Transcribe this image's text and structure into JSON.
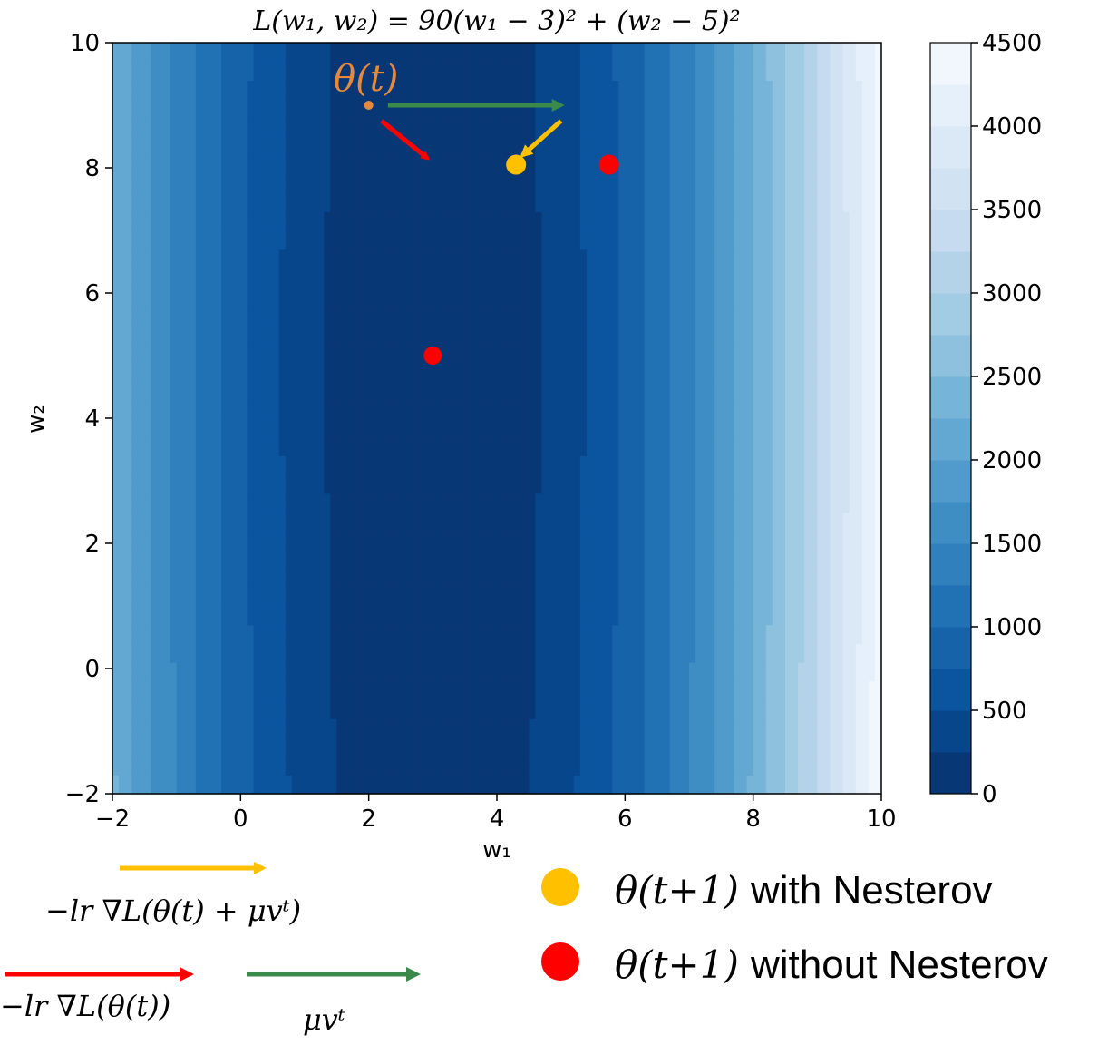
{
  "chart_data": {
    "type": "heatmap",
    "title": "L(w₁, w₂) = 90(w₁ − 3)² + (w₂ − 5)²",
    "xlabel": "w₁",
    "ylabel": "w₂",
    "xlim": [
      -2,
      10
    ],
    "ylim": [
      -2,
      10
    ],
    "x_ticks": [
      -2,
      0,
      2,
      4,
      6,
      8,
      10
    ],
    "y_ticks": [
      -2,
      0,
      2,
      4,
      6,
      8,
      10
    ],
    "x_tick_labels": [
      "−2",
      "0",
      "2",
      "4",
      "6",
      "8",
      "10"
    ],
    "y_tick_labels": [
      "−2",
      "0",
      "2",
      "4",
      "6",
      "8",
      "10"
    ],
    "function": {
      "a": 90,
      "cx": 3,
      "b": 1,
      "cy": 5
    },
    "colorbar": {
      "min": 0,
      "max": 4500,
      "step": 250,
      "ticks": [
        0,
        500,
        1000,
        1500,
        2000,
        2500,
        3000,
        3500,
        4000,
        4500
      ],
      "tick_labels": [
        "0",
        "500",
        "1000",
        "1500",
        "2000",
        "2500",
        "3000",
        "3500",
        "4000",
        "4500"
      ],
      "colormap": "Blues_r"
    },
    "points": [
      {
        "name": "theta_t",
        "x": 2.0,
        "y": 9.0,
        "color": "#e8893a"
      },
      {
        "name": "nesterov_next",
        "x": 4.3,
        "y": 8.05,
        "color": "#ffc000"
      },
      {
        "name": "no_nesterov_next",
        "x": 5.75,
        "y": 8.05,
        "color": "#ff0000"
      },
      {
        "name": "minimum",
        "x": 3.0,
        "y": 5.0,
        "color": "#ff0000"
      }
    ],
    "arrows": [
      {
        "name": "gradient-step",
        "from": [
          2.2,
          8.75
        ],
        "to": [
          2.92,
          8.15
        ],
        "color": "#ff0000"
      },
      {
        "name": "momentum-step",
        "from": [
          2.3,
          9.0
        ],
        "to": [
          5.0,
          9.0
        ],
        "color": "#3b8a4a"
      },
      {
        "name": "nesterov-gradient-step",
        "from": [
          5.0,
          8.75
        ],
        "to": [
          4.4,
          8.2
        ],
        "color": "#ffc000"
      }
    ]
  },
  "annotations": {
    "theta_t": "θ(t)",
    "legend": [
      {
        "label_math": "θ(t+1)",
        "label_text": "with Nesterov",
        "color": "#ffc000"
      },
      {
        "label_math": "θ(t+1)",
        "label_text": "without Nesterov",
        "color": "#ff0000"
      }
    ],
    "arrow_keys": [
      {
        "name": "key-yellow",
        "label": "−lr ∇L(θ(t) + μvᵗ)",
        "color": "#ffc000"
      },
      {
        "name": "key-red",
        "label": "−lr ∇L(θ(t))",
        "color": "#ff0000"
      },
      {
        "name": "key-green",
        "label": "μvᵗ",
        "color": "#3b8a4a"
      }
    ]
  }
}
